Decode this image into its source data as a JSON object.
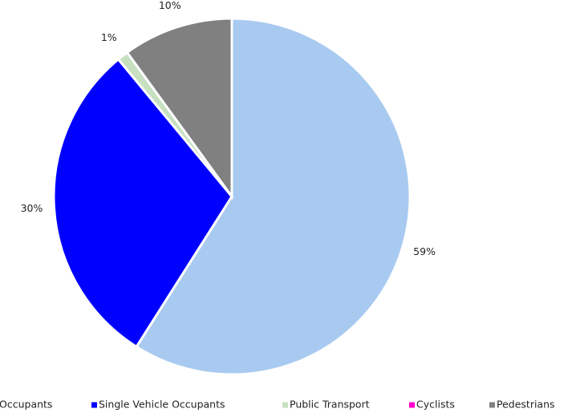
{
  "chart_data": {
    "type": "pie",
    "categories": [
      "Occupants",
      "Single Vehicle Occupants",
      "Public Transport",
      "Cyclists",
      "Pedestrians"
    ],
    "values": [
      59,
      30,
      1,
      0,
      10
    ],
    "value_labels": [
      "59%",
      "30%",
      "1%",
      null,
      "10%"
    ],
    "colors": [
      "#a9caf0",
      "#0000ff",
      "#c6e0c0",
      "#ff00cc",
      "#808080"
    ],
    "legend": "bottom"
  }
}
